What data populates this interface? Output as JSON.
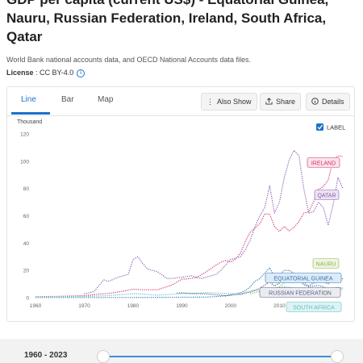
{
  "page": {
    "title": "GDP per capita (current US$) - Equatorial Guinea, Nauru, Russian Federation, Ireland, South Africa, Qatar",
    "subtitle": "World Bank national accounts data, and OECD National Accounts data files.",
    "license_label": "License",
    "license_value": " : CC BY-4.0",
    "info_icon": "info-icon"
  },
  "tabs": [
    {
      "label": "Line",
      "active": true
    },
    {
      "label": "Bar",
      "active": false
    },
    {
      "label": "Map",
      "active": false
    }
  ],
  "toolbar": {
    "also_show": "Also Show",
    "share": "Share",
    "details": "Details"
  },
  "label_toggle": {
    "text": "LABEL",
    "checked": true
  },
  "slider": {
    "range_text": "1960 - 2023"
  },
  "chart_data": {
    "type": "line",
    "unit_label": "Thousand",
    "ylim": [
      0,
      120
    ],
    "y_ticks": [
      0,
      20,
      40,
      60,
      80,
      100,
      120
    ],
    "xlim": [
      1960,
      2023
    ],
    "x_ticks": [
      1960,
      1970,
      1980,
      1990,
      2000,
      2010,
      2020
    ],
    "series": [
      {
        "name": "IRELAND",
        "color": "#d6336c",
        "label_bg": "#fbe3ec",
        "points": [
          [
            1960,
            0.7
          ],
          [
            1965,
            1.0
          ],
          [
            1970,
            1.5
          ],
          [
            1973,
            2.6
          ],
          [
            1975,
            3.1
          ],
          [
            1978,
            4.7
          ],
          [
            1980,
            6.2
          ],
          [
            1982,
            5.8
          ],
          [
            1985,
            5.8
          ],
          [
            1988,
            9.3
          ],
          [
            1990,
            13.6
          ],
          [
            1991,
            13.7
          ],
          [
            1993,
            14.8
          ],
          [
            1995,
            19.0
          ],
          [
            1997,
            23.9
          ],
          [
            1998,
            26.0
          ],
          [
            1999,
            27.2
          ],
          [
            2000,
            26.2
          ],
          [
            2001,
            28.2
          ],
          [
            2002,
            32.6
          ],
          [
            2003,
            41.0
          ],
          [
            2004,
            47.8
          ],
          [
            2005,
            51.0
          ],
          [
            2006,
            54.3
          ],
          [
            2007,
            61.4
          ],
          [
            2008,
            61.2
          ],
          [
            2009,
            52.1
          ],
          [
            2010,
            48.6
          ],
          [
            2011,
            52.2
          ],
          [
            2012,
            48.9
          ],
          [
            2013,
            51.6
          ],
          [
            2014,
            55.6
          ],
          [
            2015,
            62.0
          ],
          [
            2016,
            62.9
          ],
          [
            2017,
            70.1
          ],
          [
            2018,
            79.3
          ],
          [
            2019,
            81.4
          ],
          [
            2020,
            86.2
          ],
          [
            2021,
            101.1
          ],
          [
            2022,
            104.0
          ],
          [
            2023,
            103.5
          ]
        ]
      },
      {
        "name": "QATAR",
        "color": "#8b5fb0",
        "label_bg": "#ece3f4",
        "points": [
          [
            1970,
            2.8
          ],
          [
            1972,
            4.5
          ],
          [
            1974,
            13.0
          ],
          [
            1975,
            12.0
          ],
          [
            1977,
            15.0
          ],
          [
            1979,
            17.0
          ],
          [
            1980,
            28.0
          ],
          [
            1981,
            30.0
          ],
          [
            1982,
            25.0
          ],
          [
            1983,
            21.0
          ],
          [
            1985,
            19.0
          ],
          [
            1987,
            14.0
          ],
          [
            1988,
            14.0
          ],
          [
            1990,
            15.0
          ],
          [
            1992,
            16.0
          ],
          [
            1994,
            14.0
          ],
          [
            1995,
            15.0
          ],
          [
            1997,
            17.0
          ],
          [
            1998,
            20.0
          ],
          [
            2000,
            28.0
          ],
          [
            2002,
            30.0
          ],
          [
            2003,
            35.0
          ],
          [
            2004,
            42.0
          ],
          [
            2005,
            52.0
          ],
          [
            2006,
            60.0
          ],
          [
            2007,
            66.0
          ],
          [
            2008,
            82.0
          ],
          [
            2009,
            62.0
          ],
          [
            2010,
            70.0
          ],
          [
            2011,
            88.0
          ],
          [
            2012,
            101.0
          ],
          [
            2013,
            108.0
          ],
          [
            2014,
            104.0
          ],
          [
            2015,
            80.0
          ],
          [
            2016,
            62.0
          ],
          [
            2017,
            63.0
          ],
          [
            2018,
            70.0
          ],
          [
            2019,
            66.0
          ],
          [
            2020,
            53.0
          ],
          [
            2021,
            68.0
          ],
          [
            2022,
            88.0
          ],
          [
            2023,
            80.0
          ]
        ]
      },
      {
        "name": "NAURU",
        "color": "#8ab547",
        "label_bg": "#eef5e2",
        "points": [
          [
            2004,
            3.0
          ],
          [
            2006,
            4.5
          ],
          [
            2008,
            6.0
          ],
          [
            2010,
            8.0
          ],
          [
            2011,
            11.0
          ],
          [
            2012,
            12.0
          ],
          [
            2013,
            13.0
          ],
          [
            2014,
            14.0
          ],
          [
            2015,
            13.0
          ],
          [
            2016,
            12.0
          ],
          [
            2017,
            12.0
          ],
          [
            2018,
            12.0
          ],
          [
            2019,
            13.0
          ],
          [
            2020,
            12.0
          ],
          [
            2021,
            13.0
          ],
          [
            2022,
            12.0
          ],
          [
            2023,
            12.5
          ]
        ]
      },
      {
        "name": "EQUATORIAL GUINEA",
        "color": "#2f76b6",
        "label_bg": "#deebf7",
        "points": [
          [
            1960,
            0.1
          ],
          [
            1970,
            0.1
          ],
          [
            1980,
            0.1
          ],
          [
            1990,
            0.3
          ],
          [
            1995,
            0.4
          ],
          [
            1998,
            1.0
          ],
          [
            2000,
            2.0
          ],
          [
            2001,
            3.0
          ],
          [
            2002,
            3.5
          ],
          [
            2003,
            5.0
          ],
          [
            2004,
            8.0
          ],
          [
            2005,
            12.0
          ],
          [
            2006,
            14.0
          ],
          [
            2007,
            18.0
          ],
          [
            2008,
            22.0
          ],
          [
            2009,
            15.0
          ],
          [
            2010,
            17.0
          ],
          [
            2011,
            20.0
          ],
          [
            2012,
            20.0
          ],
          [
            2013,
            18.0
          ],
          [
            2014,
            17.0
          ],
          [
            2015,
            11.0
          ],
          [
            2016,
            8.0
          ],
          [
            2017,
            8.5
          ],
          [
            2018,
            9.0
          ],
          [
            2019,
            8.0
          ],
          [
            2020,
            6.0
          ],
          [
            2021,
            7.0
          ],
          [
            2022,
            7.5
          ],
          [
            2023,
            7.0
          ]
        ]
      },
      {
        "name": "RUSSIAN FEDERATION",
        "color": "#5a5f7d",
        "label_bg": "#ebecf1",
        "points": [
          [
            1989,
            3.4
          ],
          [
            1990,
            3.5
          ],
          [
            1992,
            3.1
          ],
          [
            1995,
            2.7
          ],
          [
            1998,
            1.8
          ],
          [
            1999,
            1.3
          ],
          [
            2000,
            1.8
          ],
          [
            2002,
            2.4
          ],
          [
            2004,
            4.1
          ],
          [
            2006,
            6.9
          ],
          [
            2008,
            11.6
          ],
          [
            2009,
            8.6
          ],
          [
            2010,
            10.7
          ],
          [
            2011,
            14.2
          ],
          [
            2012,
            15.2
          ],
          [
            2013,
            15.9
          ],
          [
            2014,
            14.1
          ],
          [
            2015,
            9.3
          ],
          [
            2016,
            8.7
          ],
          [
            2017,
            10.7
          ],
          [
            2018,
            11.3
          ],
          [
            2019,
            11.5
          ],
          [
            2020,
            10.2
          ],
          [
            2021,
            12.6
          ],
          [
            2022,
            15.3
          ],
          [
            2023,
            13.8
          ]
        ]
      },
      {
        "name": "SOUTH AFRICA",
        "color": "#5bc0c6",
        "label_bg": "#dff3f4",
        "points": [
          [
            1960,
            0.5
          ],
          [
            1965,
            0.7
          ],
          [
            1970,
            0.9
          ],
          [
            1975,
            1.5
          ],
          [
            1980,
            2.9
          ],
          [
            1982,
            2.6
          ],
          [
            1985,
            1.8
          ],
          [
            1988,
            2.5
          ],
          [
            1990,
            3.1
          ],
          [
            1993,
            3.2
          ],
          [
            1995,
            3.7
          ],
          [
            1998,
            3.2
          ],
          [
            2000,
            3.0
          ],
          [
            2002,
            2.6
          ],
          [
            2004,
            4.8
          ],
          [
            2006,
            5.6
          ],
          [
            2008,
            5.8
          ],
          [
            2010,
            7.3
          ],
          [
            2011,
            8.0
          ],
          [
            2012,
            7.5
          ],
          [
            2013,
            6.9
          ],
          [
            2014,
            6.5
          ],
          [
            2015,
            5.7
          ],
          [
            2016,
            5.3
          ],
          [
            2017,
            6.1
          ],
          [
            2018,
            6.4
          ],
          [
            2019,
            6.0
          ],
          [
            2020,
            5.1
          ],
          [
            2021,
            6.9
          ],
          [
            2022,
            6.5
          ],
          [
            2023,
            6.0
          ]
        ]
      }
    ]
  }
}
